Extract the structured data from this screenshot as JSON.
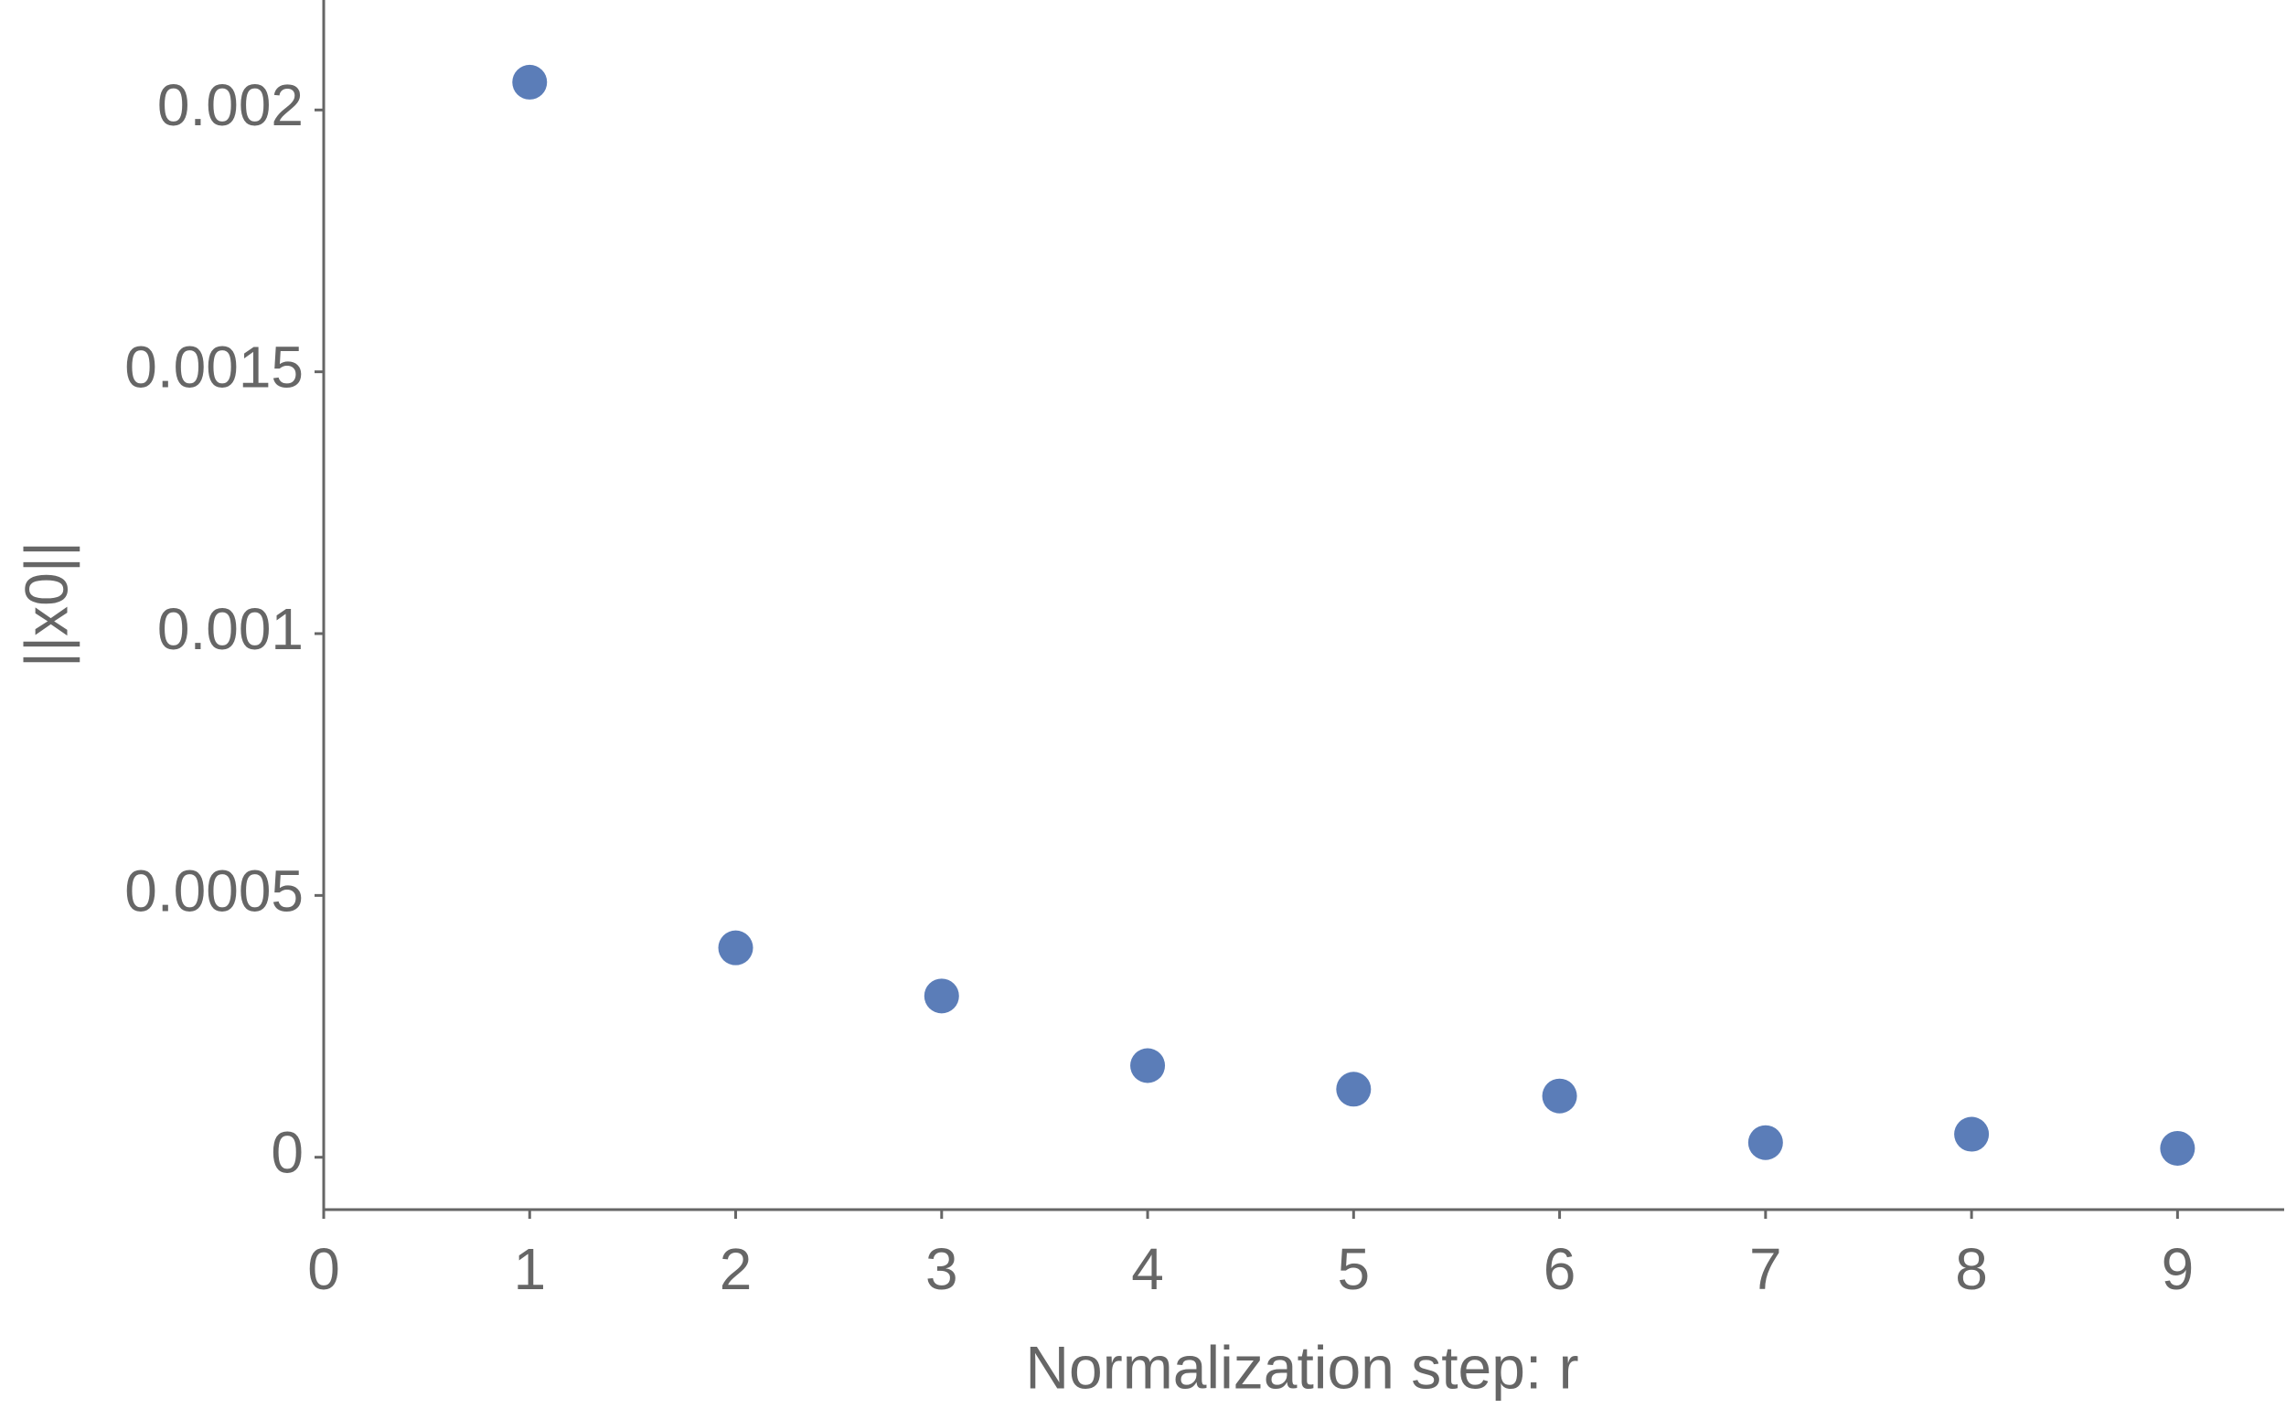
{
  "chart_data": {
    "type": "scatter",
    "x_label": "Normalization step: r",
    "y_label": "||x0||",
    "x": [
      1,
      2,
      3,
      4,
      5,
      6,
      7,
      8,
      9
    ],
    "series": [
      {
        "color": "#5b7db8",
        "values": [
          0.002053,
          0.0004,
          0.000308,
          0.000175,
          0.00013,
          0.000117,
          2.8e-05,
          4.4e-05,
          1.7e-05
        ]
      }
    ],
    "xlim": [
      0,
      9.5
    ],
    "xticks": [
      0,
      1,
      2,
      3,
      4,
      5,
      6,
      7,
      8,
      9
    ],
    "ylim": [
      -0.0001,
      0.00221
    ],
    "yticks": [
      0,
      0.0005,
      0.001,
      0.0015,
      0.002
    ],
    "grid": false
  }
}
